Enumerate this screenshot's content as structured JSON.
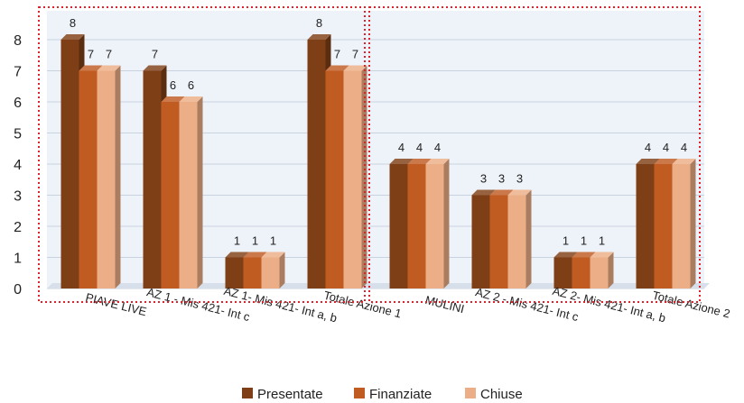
{
  "chart_data": {
    "type": "bar",
    "title": "",
    "xlabel": "",
    "ylabel": "",
    "ylim": [
      0,
      8
    ],
    "yticks": [
      0,
      1,
      2,
      3,
      4,
      5,
      6,
      7,
      8
    ],
    "grid": true,
    "legend_position": "bottom",
    "categories": [
      "PIAVE LIVE",
      "AZ 1 - Mis 421- Int c",
      "AZ 1- Mis 421- Int a, b",
      "Totale Azione 1",
      "MULINI",
      "AZ 2 - Mis 421- Int c",
      "AZ 2- Mis 421- Int a, b",
      "Totale Azione 2"
    ],
    "series": [
      {
        "name": "Presentate",
        "color": "#7F3F16",
        "values": [
          8,
          7,
          1,
          8,
          4,
          3,
          1,
          4
        ]
      },
      {
        "name": "Finanziate",
        "color": "#C05C22",
        "values": [
          7,
          6,
          1,
          7,
          4,
          3,
          1,
          4
        ]
      },
      {
        "name": "Chiuse",
        "color": "#ECAE86",
        "values": [
          7,
          6,
          1,
          7,
          4,
          3,
          1,
          4
        ]
      }
    ],
    "background_color": "#EEF3FA",
    "highlight_border_color": "#E0212B"
  }
}
